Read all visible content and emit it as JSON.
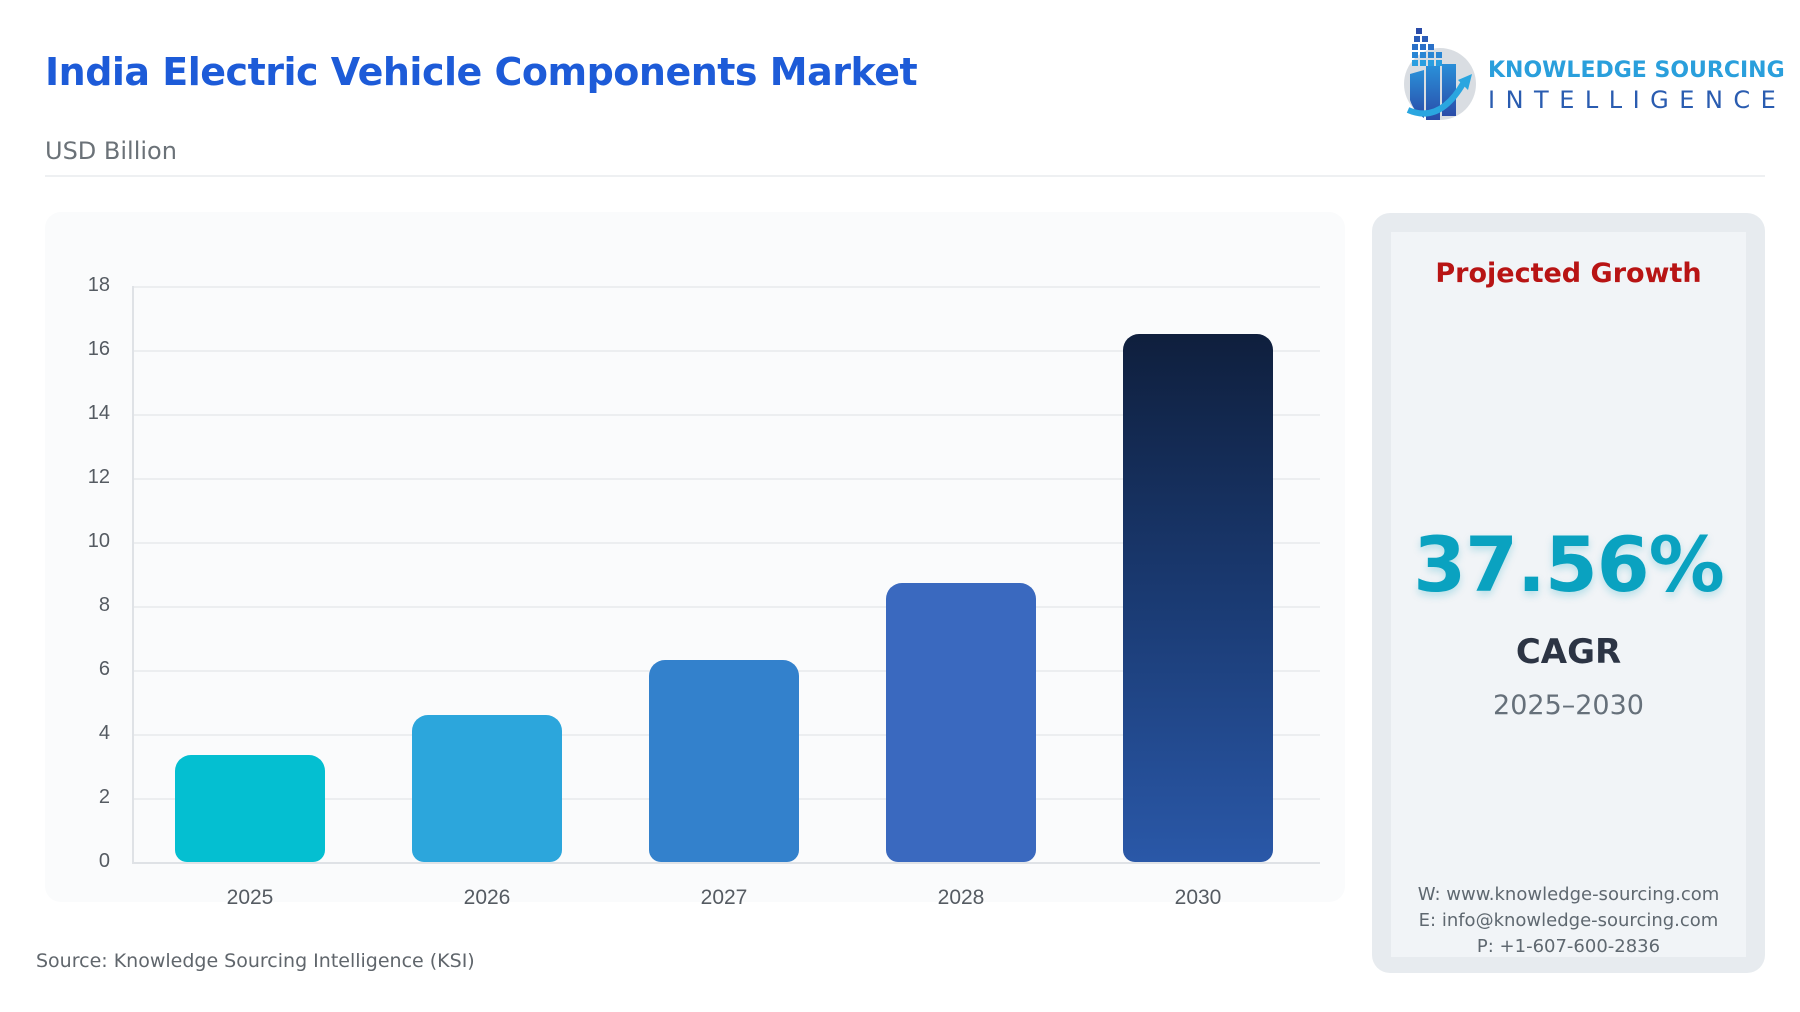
{
  "header": {
    "title": "India Electric Vehicle Components Market",
    "unit": "USD Billion"
  },
  "logo": {
    "line1": "KNOWLEDGE SOURCING",
    "line2": "INTELLIGENCE",
    "icon": "bar-chart-arrow-globe-icon"
  },
  "chart_data": {
    "type": "bar",
    "title": "India Electric Vehicle Components Market",
    "subtitle": "USD Billion",
    "categories": [
      "2025",
      "2026",
      "2027",
      "2028",
      "2030"
    ],
    "values": [
      3.35,
      4.58,
      6.32,
      8.73,
      16.5
    ],
    "xlabel": "",
    "ylabel": "USD Billion",
    "ylim": [
      0,
      18
    ],
    "yticks": [
      "0",
      "2",
      "4",
      "6",
      "8",
      "10",
      "12",
      "14",
      "16",
      "18"
    ],
    "grid": true,
    "legend": "none",
    "colors": [
      "#04bfd1",
      "#2ca6dc",
      "#3381cc",
      "#3a69bf",
      "#0f1f3d"
    ]
  },
  "side_panel": {
    "heading": "Projected Growth",
    "value": "37.56%",
    "label": "CAGR",
    "period": "2025–2030",
    "contact": {
      "web": "W: www.knowledge-sourcing.com",
      "email": "E: info@knowledge-sourcing.com",
      "phone": "P: +1-607-600-2836"
    }
  },
  "footer": {
    "source": "Source: Knowledge Sourcing Intelligence (KSI)"
  },
  "colors": {
    "title": "#1d5bd8",
    "heading_red": "#b81414",
    "cagr_teal": "#0aa2c0"
  }
}
